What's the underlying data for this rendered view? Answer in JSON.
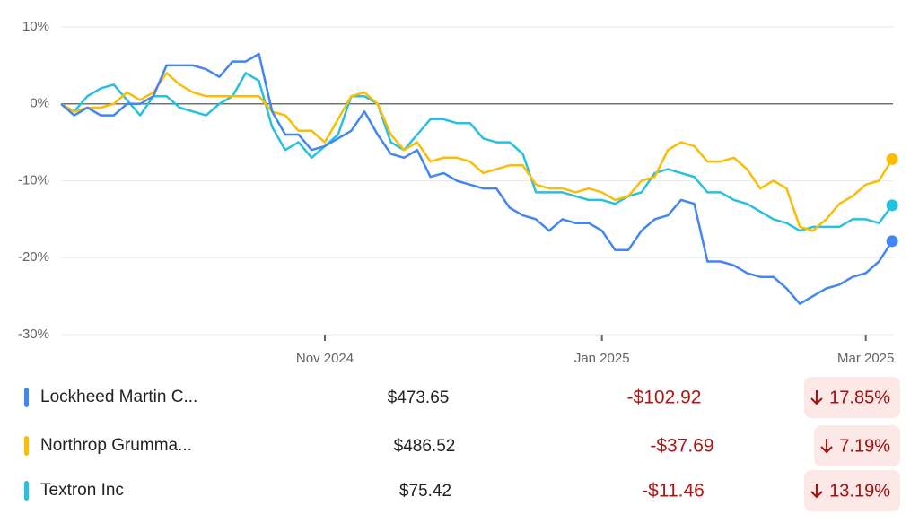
{
  "chart_data": {
    "type": "line",
    "categories": [
      null,
      null,
      null,
      null,
      null,
      null,
      null,
      null,
      null,
      null,
      null,
      null,
      null,
      null,
      null,
      null,
      null,
      null,
      null,
      null,
      "Nov 2024",
      null,
      null,
      null,
      null,
      null,
      null,
      null,
      null,
      null,
      null,
      null,
      null,
      null,
      null,
      null,
      null,
      null,
      null,
      null,
      null,
      "Jan 2025",
      null,
      null,
      null,
      null,
      null,
      null,
      null,
      null,
      null,
      null,
      null,
      null,
      null,
      null,
      null,
      null,
      null,
      null,
      null,
      "Mar 2025",
      null,
      null
    ],
    "series": [
      {
        "name": "Lockheed Martin C...",
        "color": "#4285f4",
        "values": [
          0,
          -1.5,
          -0.5,
          -1.5,
          -1.5,
          0,
          0,
          1,
          5,
          5,
          5,
          4.5,
          3.5,
          5.5,
          5.5,
          6.5,
          -1,
          -4,
          -4,
          -6,
          -5.5,
          -4.5,
          -3.5,
          -1,
          -4,
          -6.5,
          -7,
          -6,
          -9.5,
          -9,
          -10,
          -10.5,
          -11,
          -11,
          -13.5,
          -14.5,
          -15,
          -16.5,
          -15,
          -15.5,
          -15.5,
          -16.5,
          -19,
          -19,
          -16.5,
          -15,
          -14.5,
          -12.5,
          -13,
          -20.5,
          -20.5,
          -21,
          -22,
          -22.5,
          -22.5,
          -24,
          -26,
          -25,
          -24,
          -23.5,
          -22.5,
          -22,
          -20.5,
          -17.85
        ]
      },
      {
        "name": "Northrop Grumma...",
        "color": "#fbbc04",
        "values": [
          0,
          -1,
          -0.5,
          -0.5,
          0,
          1.5,
          0.5,
          1.5,
          4,
          2.5,
          1.5,
          1,
          1,
          1,
          1,
          1,
          -1,
          -1.5,
          -3.5,
          -3.5,
          -5,
          -2,
          1,
          1.5,
          0,
          -4,
          -6,
          -5,
          -7.5,
          -7,
          -7,
          -7.5,
          -9,
          -8.5,
          -8,
          -8,
          -10.5,
          -11,
          -11,
          -11.5,
          -11,
          -11.5,
          -12.5,
          -12,
          -10,
          -9.5,
          -6,
          -5,
          -5.5,
          -7.5,
          -7.5,
          -7,
          -8.5,
          -11,
          -10,
          -11,
          -16,
          -16.5,
          -15,
          -13,
          -12,
          -10.5,
          -10,
          -7.19
        ]
      },
      {
        "name": "Textron Inc",
        "color": "#24c1e0",
        "values": [
          0,
          -1,
          1,
          2,
          2.5,
          0.5,
          -1.5,
          1,
          1,
          -0.5,
          -1,
          -1.5,
          0,
          1,
          4,
          3,
          -3,
          -6,
          -5,
          -7,
          -5.5,
          -4,
          1,
          1,
          0,
          -5,
          -6,
          -4,
          -2,
          -2,
          -2.5,
          -2.5,
          -4.5,
          -5,
          -5,
          -6.5,
          -11.5,
          -11.5,
          -11.5,
          -12,
          -12.5,
          -12.5,
          -13,
          -12,
          -11.5,
          -9,
          -8.5,
          -9,
          -9.5,
          -11.5,
          -11.5,
          -12.5,
          -13,
          -14,
          -15,
          -15.5,
          -16.5,
          -16,
          -16,
          -16,
          -15,
          -15,
          -15.5,
          -13.19
        ]
      }
    ],
    "ylim": [
      -30,
      10
    ],
    "yticks": [
      {
        "value": -30,
        "label": "-30%"
      },
      {
        "value": -20,
        "label": "-20%"
      },
      {
        "value": -10,
        "label": "-10%"
      },
      {
        "value": 0,
        "label": "0%"
      },
      {
        "value": 10,
        "label": "10%"
      }
    ],
    "grid": true
  },
  "table": {
    "rows": [
      {
        "price": "$473.65",
        "change": "-$102.92",
        "change_pct": "17.85%"
      },
      {
        "price": "$486.52",
        "change": "-$37.69",
        "change_pct": "7.19%"
      },
      {
        "price": "$75.42",
        "change": "-$11.46",
        "change_pct": "13.19%"
      }
    ]
  }
}
